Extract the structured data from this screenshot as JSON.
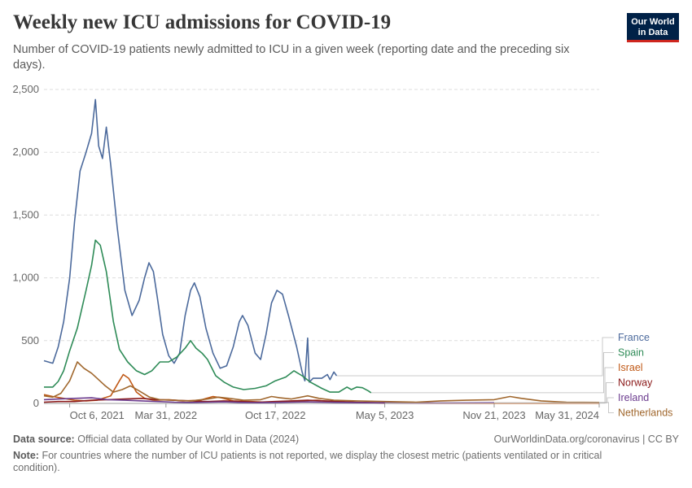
{
  "header": {
    "title": "Weekly new ICU admissions for COVID-19",
    "subtitle": "Number of COVID-19 patients newly admitted to ICU in a given week (reporting date and the preceding six days).",
    "logo_line1": "Our World",
    "logo_line2": "in Data"
  },
  "footer": {
    "source_label": "Data source:",
    "source_text": "Official data collated by Our World in Data (2024)",
    "url": "OurWorldinData.org/coronavirus | CC BY",
    "note_label": "Note:",
    "note_text": "For countries where the number of ICU patients is not reported, we display the closest metric (patients ventilated or in critical condition)."
  },
  "chart_data": {
    "type": "line",
    "title": "Weekly new ICU admissions for COVID-19",
    "xlabel": "",
    "ylabel": "",
    "ylim": [
      0,
      2500
    ],
    "y_ticks": [
      0,
      500,
      1000,
      1500,
      2000,
      2500
    ],
    "y_tick_labels": [
      "0",
      "500",
      "1,000",
      "1,500",
      "2,000",
      "2,500"
    ],
    "x_range": [
      "2021-08-20",
      "2024-05-31"
    ],
    "x_ticks": [
      "2021-10-06",
      "2022-03-31",
      "2022-10-17",
      "2023-05-05",
      "2023-11-21",
      "2024-05-31"
    ],
    "x_tick_labels": [
      "Oct 6, 2021",
      "Mar 31, 2022",
      "Oct 17, 2022",
      "May 5, 2023",
      "Nov 21, 2023",
      "May 31, 2024"
    ],
    "grid": "horizontal dashed",
    "legend_position": "right",
    "series": [
      {
        "name": "France",
        "color": "#4c6a9c",
        "points": [
          [
            "2021-08-20",
            340
          ],
          [
            "2021-09-05",
            320
          ],
          [
            "2021-09-15",
            450
          ],
          [
            "2021-09-25",
            650
          ],
          [
            "2021-10-06",
            1000
          ],
          [
            "2021-10-15",
            1450
          ],
          [
            "2021-10-25",
            1850
          ],
          [
            "2021-11-05",
            2000
          ],
          [
            "2021-11-15",
            2150
          ],
          [
            "2021-11-22",
            2420
          ],
          [
            "2021-11-28",
            2050
          ],
          [
            "2021-12-05",
            1950
          ],
          [
            "2021-12-12",
            2200
          ],
          [
            "2021-12-20",
            1900
          ],
          [
            "2022-01-01",
            1400
          ],
          [
            "2022-01-15",
            900
          ],
          [
            "2022-01-28",
            700
          ],
          [
            "2022-02-10",
            820
          ],
          [
            "2022-02-20",
            1000
          ],
          [
            "2022-02-28",
            1120
          ],
          [
            "2022-03-08",
            1050
          ],
          [
            "2022-03-15",
            850
          ],
          [
            "2022-03-25",
            550
          ],
          [
            "2022-04-05",
            380
          ],
          [
            "2022-04-15",
            320
          ],
          [
            "2022-04-25",
            400
          ],
          [
            "2022-05-05",
            700
          ],
          [
            "2022-05-15",
            900
          ],
          [
            "2022-05-22",
            960
          ],
          [
            "2022-06-01",
            850
          ],
          [
            "2022-06-12",
            600
          ],
          [
            "2022-06-25",
            400
          ],
          [
            "2022-07-08",
            280
          ],
          [
            "2022-07-20",
            300
          ],
          [
            "2022-08-01",
            450
          ],
          [
            "2022-08-12",
            650
          ],
          [
            "2022-08-18",
            700
          ],
          [
            "2022-08-28",
            620
          ],
          [
            "2022-09-10",
            400
          ],
          [
            "2022-09-20",
            350
          ],
          [
            "2022-09-30",
            550
          ],
          [
            "2022-10-10",
            800
          ],
          [
            "2022-10-20",
            900
          ],
          [
            "2022-10-30",
            870
          ],
          [
            "2022-11-10",
            700
          ],
          [
            "2022-11-25",
            450
          ],
          [
            "2022-12-05",
            250
          ],
          [
            "2022-12-10",
            180
          ],
          [
            "2022-12-15",
            520
          ],
          [
            "2022-12-18",
            170
          ],
          [
            "2022-12-25",
            200
          ],
          [
            "2023-01-10",
            200
          ],
          [
            "2023-01-20",
            230
          ],
          [
            "2023-01-25",
            190
          ],
          [
            "2023-02-01",
            250
          ],
          [
            "2023-02-06",
            220
          ]
        ]
      },
      {
        "name": "Spain",
        "color": "#2e8b57",
        "points": [
          [
            "2021-08-20",
            130
          ],
          [
            "2021-09-05",
            130
          ],
          [
            "2021-09-15",
            175
          ],
          [
            "2021-09-25",
            260
          ],
          [
            "2021-10-06",
            420
          ],
          [
            "2021-10-20",
            600
          ],
          [
            "2021-11-05",
            900
          ],
          [
            "2021-11-15",
            1100
          ],
          [
            "2021-11-22",
            1300
          ],
          [
            "2021-12-01",
            1260
          ],
          [
            "2021-12-12",
            1050
          ],
          [
            "2021-12-25",
            650
          ],
          [
            "2022-01-05",
            430
          ],
          [
            "2022-01-20",
            330
          ],
          [
            "2022-02-05",
            260
          ],
          [
            "2022-02-20",
            230
          ],
          [
            "2022-03-05",
            260
          ],
          [
            "2022-03-20",
            330
          ],
          [
            "2022-04-05",
            330
          ],
          [
            "2022-04-20",
            370
          ],
          [
            "2022-05-05",
            440
          ],
          [
            "2022-05-15",
            500
          ],
          [
            "2022-05-25",
            440
          ],
          [
            "2022-06-05",
            400
          ],
          [
            "2022-06-15",
            350
          ],
          [
            "2022-06-30",
            220
          ],
          [
            "2022-07-15",
            170
          ],
          [
            "2022-08-01",
            130
          ],
          [
            "2022-08-20",
            110
          ],
          [
            "2022-09-10",
            120
          ],
          [
            "2022-09-30",
            140
          ],
          [
            "2022-10-17",
            180
          ],
          [
            "2022-11-05",
            210
          ],
          [
            "2022-11-20",
            260
          ],
          [
            "2022-12-05",
            220
          ],
          [
            "2022-12-20",
            170
          ],
          [
            "2023-01-10",
            120
          ],
          [
            "2023-01-25",
            90
          ],
          [
            "2023-02-10",
            90
          ],
          [
            "2023-02-25",
            130
          ],
          [
            "2023-03-05",
            110
          ],
          [
            "2023-03-15",
            130
          ],
          [
            "2023-03-25",
            125
          ],
          [
            "2023-04-05",
            100
          ],
          [
            "2023-04-10",
            85
          ]
        ]
      },
      {
        "name": "Israel",
        "color": "#c05917",
        "points": [
          [
            "2021-08-20",
            70
          ],
          [
            "2021-09-05",
            55
          ],
          [
            "2021-09-25",
            40
          ],
          [
            "2021-10-15",
            25
          ],
          [
            "2021-11-05",
            20
          ],
          [
            "2021-11-25",
            25
          ],
          [
            "2021-12-20",
            60
          ],
          [
            "2022-01-05",
            180
          ],
          [
            "2022-01-12",
            230
          ],
          [
            "2022-01-22",
            200
          ],
          [
            "2022-02-05",
            90
          ],
          [
            "2022-02-20",
            40
          ],
          [
            "2022-03-10",
            25
          ],
          [
            "2022-04-05",
            30
          ],
          [
            "2022-05-01",
            20
          ],
          [
            "2022-06-01",
            25
          ],
          [
            "2022-06-25",
            55
          ],
          [
            "2022-07-10",
            45
          ],
          [
            "2022-08-01",
            20
          ],
          [
            "2022-09-01",
            15
          ],
          [
            "2022-10-01",
            10
          ],
          [
            "2022-11-01",
            15
          ],
          [
            "2022-12-01",
            20
          ],
          [
            "2023-01-01",
            25
          ],
          [
            "2023-02-01",
            10
          ],
          [
            "2023-03-15",
            8
          ],
          [
            "2023-05-05",
            5
          ],
          [
            "2023-07-01",
            3
          ],
          [
            "2023-09-01",
            2
          ],
          [
            "2023-11-21",
            2
          ],
          [
            "2024-02-01",
            2
          ],
          [
            "2024-05-31",
            2
          ]
        ]
      },
      {
        "name": "Norway",
        "color": "#8b1a1a",
        "points": [
          [
            "2021-08-20",
            10
          ],
          [
            "2021-09-15",
            15
          ],
          [
            "2021-10-15",
            15
          ],
          [
            "2021-11-15",
            25
          ],
          [
            "2021-12-15",
            30
          ],
          [
            "2022-01-15",
            35
          ],
          [
            "2022-02-15",
            40
          ],
          [
            "2022-03-15",
            30
          ],
          [
            "2022-04-15",
            25
          ],
          [
            "2022-05-15",
            20
          ],
          [
            "2022-06-15",
            15
          ],
          [
            "2022-07-15",
            20
          ],
          [
            "2022-08-15",
            15
          ],
          [
            "2022-09-15",
            10
          ],
          [
            "2022-10-15",
            15
          ],
          [
            "2022-11-15",
            20
          ],
          [
            "2022-12-15",
            25
          ],
          [
            "2023-01-15",
            20
          ],
          [
            "2023-02-15",
            15
          ],
          [
            "2023-03-15",
            10
          ],
          [
            "2023-04-15",
            5
          ],
          [
            "2023-05-05",
            3
          ]
        ]
      },
      {
        "name": "Ireland",
        "color": "#6b3b8e",
        "points": [
          [
            "2021-08-20",
            30
          ],
          [
            "2021-09-15",
            35
          ],
          [
            "2021-10-15",
            40
          ],
          [
            "2021-11-15",
            45
          ],
          [
            "2021-12-15",
            30
          ],
          [
            "2022-01-15",
            25
          ],
          [
            "2022-02-15",
            20
          ],
          [
            "2022-03-15",
            15
          ],
          [
            "2022-04-15",
            10
          ],
          [
            "2022-05-15",
            8
          ],
          [
            "2022-06-15",
            10
          ],
          [
            "2022-07-15",
            12
          ],
          [
            "2022-08-15",
            8
          ],
          [
            "2022-09-15",
            6
          ],
          [
            "2022-10-15",
            8
          ],
          [
            "2022-11-15",
            10
          ],
          [
            "2022-12-15",
            12
          ],
          [
            "2023-01-15",
            10
          ],
          [
            "2023-02-15",
            8
          ],
          [
            "2023-03-15",
            6
          ],
          [
            "2023-05-05",
            5
          ],
          [
            "2023-07-01",
            4
          ],
          [
            "2023-09-01",
            4
          ],
          [
            "2023-11-21",
            5
          ]
        ]
      },
      {
        "name": "Netherlands",
        "color": "#a0672d",
        "points": [
          [
            "2021-08-20",
            60
          ],
          [
            "2021-09-05",
            50
          ],
          [
            "2021-09-20",
            80
          ],
          [
            "2021-10-06",
            180
          ],
          [
            "2021-10-20",
            330
          ],
          [
            "2021-11-01",
            280
          ],
          [
            "2021-11-15",
            240
          ],
          [
            "2021-11-25",
            200
          ],
          [
            "2021-12-10",
            140
          ],
          [
            "2021-12-25",
            90
          ],
          [
            "2022-01-10",
            110
          ],
          [
            "2022-01-25",
            140
          ],
          [
            "2022-02-10",
            100
          ],
          [
            "2022-03-01",
            50
          ],
          [
            "2022-03-20",
            30
          ],
          [
            "2022-04-15",
            25
          ],
          [
            "2022-05-15",
            20
          ],
          [
            "2022-06-15",
            35
          ],
          [
            "2022-07-05",
            50
          ],
          [
            "2022-07-25",
            40
          ],
          [
            "2022-08-20",
            25
          ],
          [
            "2022-09-20",
            30
          ],
          [
            "2022-10-10",
            55
          ],
          [
            "2022-10-25",
            45
          ],
          [
            "2022-11-15",
            35
          ],
          [
            "2022-12-15",
            60
          ],
          [
            "2023-01-05",
            40
          ],
          [
            "2023-02-01",
            25
          ],
          [
            "2023-03-15",
            20
          ],
          [
            "2023-05-05",
            15
          ],
          [
            "2023-07-01",
            10
          ],
          [
            "2023-08-15",
            20
          ],
          [
            "2023-10-01",
            25
          ],
          [
            "2023-11-21",
            30
          ],
          [
            "2023-12-20",
            55
          ],
          [
            "2024-01-10",
            40
          ],
          [
            "2024-02-15",
            20
          ],
          [
            "2024-04-01",
            10
          ],
          [
            "2024-05-31",
            8
          ]
        ]
      }
    ]
  }
}
